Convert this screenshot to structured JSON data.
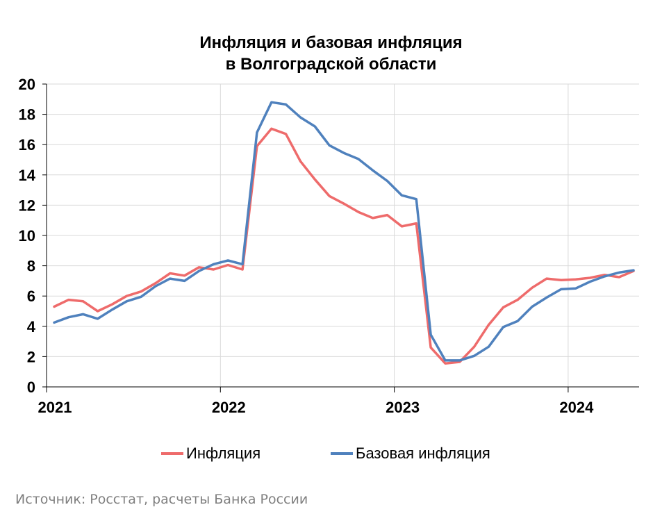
{
  "chart_data": {
    "type": "line",
    "title_line1": "Инфляция и базовая инфляция",
    "title_line2": "в Волгоградской области",
    "ylim": [
      0,
      20
    ],
    "yticks": [
      "0",
      "2",
      "4",
      "6",
      "8",
      "10",
      "12",
      "14",
      "16",
      "18",
      "20"
    ],
    "xticks": [
      "2021",
      "2022",
      "2023",
      "2024"
    ],
    "grid": true,
    "legend_position": "bottom",
    "colors": {
      "inflation": "#ee6b6b",
      "core": "#4f81bd"
    },
    "x": [
      "2021-01",
      "2021-02",
      "2021-03",
      "2021-04",
      "2021-05",
      "2021-06",
      "2021-07",
      "2021-08",
      "2021-09",
      "2021-10",
      "2021-11",
      "2021-12",
      "2022-01",
      "2022-02",
      "2022-03",
      "2022-04",
      "2022-05",
      "2022-06",
      "2022-07",
      "2022-08",
      "2022-09",
      "2022-10",
      "2022-11",
      "2022-12",
      "2023-01",
      "2023-02",
      "2023-03",
      "2023-04",
      "2023-05",
      "2023-06",
      "2023-07",
      "2023-08",
      "2023-09",
      "2023-10",
      "2023-11",
      "2023-12",
      "2024-01",
      "2024-02",
      "2024-03",
      "2024-04",
      "2024-05"
    ],
    "series": [
      {
        "name": "Инфляция",
        "values": [
          5.3,
          5.75,
          5.65,
          5.0,
          5.45,
          6.0,
          6.3,
          6.85,
          7.5,
          7.35,
          7.9,
          7.75,
          8.05,
          7.75,
          15.9,
          17.05,
          16.7,
          14.9,
          13.7,
          12.6,
          12.1,
          11.55,
          11.15,
          11.35,
          10.6,
          10.8,
          2.6,
          1.55,
          1.65,
          2.65,
          4.1,
          5.25,
          5.75,
          6.55,
          7.15,
          7.05,
          7.1,
          7.2,
          7.4,
          7.25,
          7.65
        ]
      },
      {
        "name": "Базовая инфляция",
        "values": [
          4.25,
          4.6,
          4.8,
          4.5,
          5.1,
          5.65,
          5.95,
          6.65,
          7.15,
          7.0,
          7.65,
          8.1,
          8.35,
          8.1,
          16.8,
          18.8,
          18.65,
          17.8,
          17.2,
          15.95,
          15.45,
          15.05,
          14.3,
          13.6,
          12.65,
          12.4,
          3.45,
          1.75,
          1.75,
          2.05,
          2.65,
          3.95,
          4.35,
          5.3,
          5.9,
          6.45,
          6.5,
          6.95,
          7.3,
          7.55,
          7.7
        ]
      }
    ]
  },
  "source_text": "Источник: Росстат, расчеты Банка России"
}
